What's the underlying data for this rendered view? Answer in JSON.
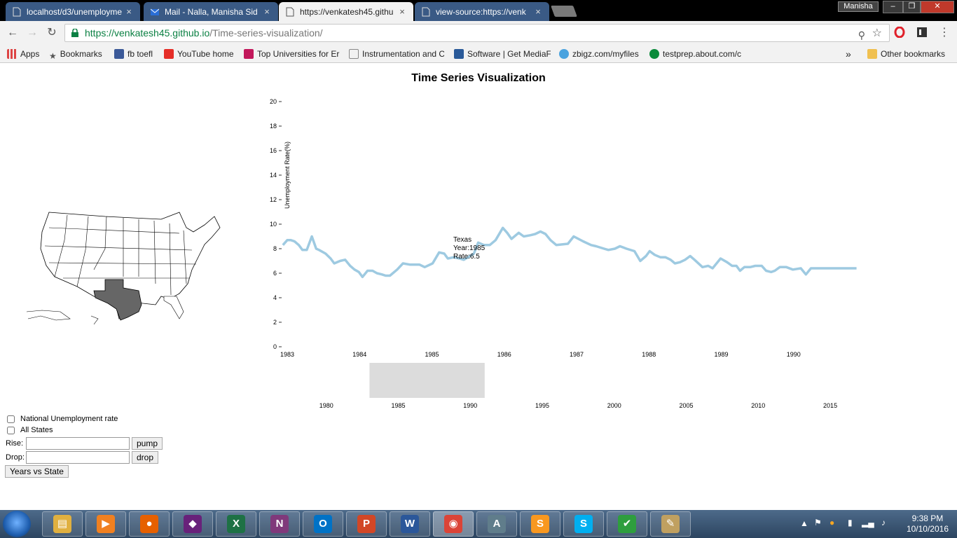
{
  "browser": {
    "tabs": [
      {
        "title": "localhost/d3/unemployme",
        "icon": "page-icon",
        "active": false
      },
      {
        "title": "Mail - Nalla, Manisha Sid",
        "icon": "mail-icon",
        "active": false
      },
      {
        "title": "https://venkatesh45.githu",
        "icon": "page-icon",
        "active": true
      },
      {
        "title": "view-source:https://venk",
        "icon": "page-icon",
        "active": false
      }
    ],
    "tab_close_glyph": "×",
    "profile_name": "Manisha",
    "window_buttons": [
      "–",
      "❐",
      "✕"
    ],
    "url_secure": "https://venkatesh45.github.io",
    "url_path": "/Time-series-visualization/",
    "bookmarks": [
      {
        "label": "Apps",
        "icon": "apps-grid-icon",
        "color": "#d44"
      },
      {
        "label": "Bookmarks",
        "icon": "star-icon",
        "color": "#555"
      },
      {
        "label": "fb toefl",
        "icon": "facebook-icon",
        "color": "#3b5998"
      },
      {
        "label": "YouTube home",
        "icon": "youtube-icon",
        "color": "#e52d27"
      },
      {
        "label": "Top Universities for Er",
        "icon": "the-icon",
        "color": "#c2185b"
      },
      {
        "label": "Instrumentation and C",
        "icon": "page-icon",
        "color": "#888"
      },
      {
        "label": "Software | Get MediaF",
        "icon": "software-icon",
        "color": "#2a5a99"
      },
      {
        "label": "zbigz.com/myfiles",
        "icon": "zbigz-icon",
        "color": "#4aa3df"
      },
      {
        "label": "testprep.about.com/c",
        "icon": "about-icon",
        "color": "#0a8a3a"
      }
    ],
    "bookmarks_overflow": "»",
    "other_bookmarks": "Other bookmarks"
  },
  "page": {
    "title": "Time Series Visualization",
    "selected_state_color": "#666666"
  },
  "chart_data": {
    "type": "line",
    "ylabel": "Unemployment Rate(%)",
    "ylim": [
      0,
      20
    ],
    "y_ticks": [
      0,
      2,
      4,
      6,
      8,
      10,
      12,
      14,
      16,
      18,
      20
    ],
    "xlim": [
      "1983-01",
      "1991-01"
    ],
    "x_tick_labels": [
      "1983",
      "1984",
      "1985",
      "1986",
      "1987",
      "1988",
      "1989",
      "1990"
    ],
    "line_color": "#9ecae1",
    "series": [
      {
        "name": "Texas",
        "x": [
          1982.94,
          1983.0,
          1983.05,
          1983.1,
          1983.16,
          1983.21,
          1983.27,
          1983.34,
          1983.4,
          1983.44,
          1983.53,
          1983.6,
          1983.65,
          1983.73,
          1983.8,
          1983.87,
          1983.93,
          1983.99,
          1984.04,
          1984.11,
          1984.18,
          1984.24,
          1984.31,
          1984.36,
          1984.42,
          1984.52,
          1984.6,
          1984.7,
          1984.83,
          1984.9,
          1985.01,
          1985.1,
          1985.17,
          1985.22,
          1985.3,
          1985.38,
          1985.44,
          1985.5,
          1985.58,
          1985.64,
          1985.72,
          1985.8,
          1985.88,
          1985.98,
          1986.04,
          1986.1,
          1986.2,
          1986.27,
          1986.36,
          1986.43,
          1986.5,
          1986.57,
          1986.64,
          1986.72,
          1986.88,
          1986.96,
          1987.09,
          1987.2,
          1987.27,
          1987.38,
          1987.44,
          1987.53,
          1987.6,
          1987.69,
          1987.8,
          1987.88,
          1987.96,
          1988.01,
          1988.08,
          1988.16,
          1988.23,
          1988.3,
          1988.36,
          1988.43,
          1988.5,
          1988.57,
          1988.63,
          1988.74,
          1988.82,
          1988.88,
          1988.99,
          1989.08,
          1989.15,
          1989.21,
          1989.26,
          1989.32,
          1989.4,
          1989.47,
          1989.56,
          1989.62,
          1989.69,
          1989.74,
          1989.81,
          1989.9,
          1989.99,
          1990.1,
          1990.17,
          1990.24,
          1990.32,
          1990.39,
          1990.48,
          1990.54,
          1990.62,
          1990.7,
          1990.76,
          1990.87
        ],
        "values": [
          8.3,
          8.7,
          8.7,
          8.6,
          8.3,
          7.9,
          7.9,
          9.0,
          8.0,
          7.9,
          7.6,
          7.2,
          6.8,
          7.0,
          7.1,
          6.6,
          6.3,
          6.1,
          5.7,
          6.2,
          6.2,
          6.0,
          5.9,
          5.8,
          5.8,
          6.3,
          6.8,
          6.7,
          6.7,
          6.5,
          6.8,
          7.7,
          7.6,
          7.2,
          7.3,
          7.2,
          7.1,
          7.3,
          7.6,
          8.5,
          8.3,
          8.3,
          8.7,
          9.7,
          9.3,
          8.8,
          9.3,
          9.0,
          9.1,
          9.2,
          9.4,
          9.2,
          8.7,
          8.3,
          8.4,
          9.0,
          8.6,
          8.3,
          8.2,
          8.0,
          7.9,
          8.0,
          8.2,
          8.0,
          7.8,
          7.0,
          7.4,
          7.8,
          7.5,
          7.3,
          7.3,
          7.1,
          6.8,
          6.9,
          7.1,
          7.4,
          7.1,
          6.5,
          6.6,
          6.4,
          7.2,
          6.9,
          6.6,
          6.6,
          6.2,
          6.5,
          6.5,
          6.6,
          6.6,
          6.2,
          6.1,
          6.2,
          6.5,
          6.5,
          6.3,
          6.4,
          5.9,
          6.4,
          6.4,
          6.4,
          6.4,
          6.4,
          6.4,
          6.4,
          6.4,
          6.4
        ]
      }
    ],
    "tooltip": {
      "state": "Texas",
      "year_text": "Year:1985",
      "rate_text": "Rate:6.5"
    },
    "context_axis": {
      "xlim": [
        1976.8,
        2016.7
      ],
      "tick_labels": [
        "1980",
        "1985",
        "1990",
        "1995",
        "2000",
        "2005",
        "2010",
        "2015"
      ],
      "brush": [
        1983.0,
        1991.0
      ]
    }
  },
  "controls": {
    "national_label": "National Unemployment rate",
    "all_states_label": "All States",
    "rise_label": "Rise:",
    "drop_label": "Drop:",
    "rise_value": "",
    "drop_value": "",
    "pump_label": "pump",
    "drop_button_label": "drop",
    "years_vs_state_label": "Years vs State"
  },
  "taskbar": {
    "apps": [
      {
        "name": "explorer",
        "glyph": "▤",
        "color": "#e0b040"
      },
      {
        "name": "media-player",
        "glyph": "▶",
        "color": "#f08020"
      },
      {
        "name": "firefox",
        "glyph": "●",
        "color": "#e66000"
      },
      {
        "name": "visual-studio",
        "glyph": "◆",
        "color": "#68217a"
      },
      {
        "name": "excel",
        "glyph": "X",
        "color": "#1e7145"
      },
      {
        "name": "onenote",
        "glyph": "N",
        "color": "#80397b"
      },
      {
        "name": "outlook",
        "glyph": "O",
        "color": "#0072c6"
      },
      {
        "name": "powerpoint",
        "glyph": "P",
        "color": "#d24726"
      },
      {
        "name": "word",
        "glyph": "W",
        "color": "#2b579a"
      },
      {
        "name": "chrome",
        "glyph": "◉",
        "color": "#db4437"
      },
      {
        "name": "reader",
        "glyph": "A",
        "color": "#607d8b"
      },
      {
        "name": "sublime",
        "glyph": "S",
        "color": "#f89820"
      },
      {
        "name": "skype",
        "glyph": "S",
        "color": "#00aff0"
      },
      {
        "name": "security",
        "glyph": "✔",
        "color": "#2e9e3e"
      },
      {
        "name": "paint",
        "glyph": "✎",
        "color": "#c0a060"
      }
    ],
    "time": "9:38 PM",
    "date": "10/10/2016"
  }
}
